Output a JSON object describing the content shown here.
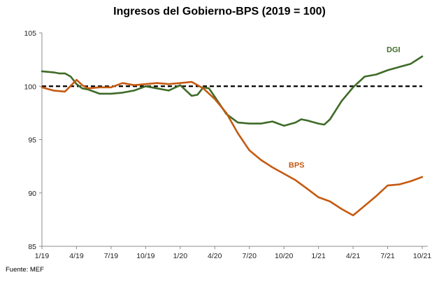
{
  "chart_data": {
    "type": "line",
    "title": "Ingresos del Gobierno-BPS (2019 = 100)",
    "source": "Fuente: MEF",
    "y_ticks": [
      "85",
      "90",
      "95",
      "100",
      "105"
    ],
    "y_range": [
      85,
      105
    ],
    "x_tick_labels": [
      "1/19",
      "4/19",
      "7/19",
      "10/19",
      "1/20",
      "4/20",
      "7/20",
      "10/20",
      "1/21",
      "4/21",
      "7/21",
      "10/21"
    ],
    "x_tick_index": [
      0,
      3,
      6,
      9,
      12,
      15,
      18,
      21,
      24,
      27,
      30,
      33
    ],
    "x_range": [
      0,
      33
    ],
    "reference_line": 100,
    "grid": false,
    "colors": {
      "DGI": "#3e6b27",
      "BPS": "#c55a11",
      "reference": "#000000"
    },
    "series": [
      {
        "name": "DGI",
        "x": [
          0,
          1,
          1.5,
          2,
          2.5,
          3,
          3.5,
          4,
          5,
          6,
          7,
          8,
          9,
          10,
          11,
          12,
          12.5,
          13,
          13.5,
          14,
          14.5,
          15,
          16,
          17,
          18,
          19,
          20,
          20.5,
          21,
          22,
          22.5,
          23,
          24,
          24.5,
          25,
          26,
          27,
          28,
          29,
          30,
          31,
          32,
          33
        ],
        "y": [
          101.4,
          101.3,
          101.2,
          101.2,
          100.9,
          100.2,
          99.8,
          99.7,
          99.3,
          99.3,
          99.4,
          99.6,
          100.0,
          99.8,
          99.6,
          100.1,
          99.6,
          99.1,
          99.2,
          99.9,
          99.8,
          99.0,
          97.4,
          96.6,
          96.5,
          96.5,
          96.7,
          96.5,
          96.3,
          96.6,
          96.9,
          96.8,
          96.5,
          96.4,
          96.9,
          98.6,
          99.9,
          100.9,
          101.1,
          101.5,
          101.8,
          102.1,
          102.8
        ]
      },
      {
        "name": "BPS",
        "x": [
          0,
          1,
          2,
          3,
          3.5,
          4,
          5,
          6,
          6.5,
          7,
          8,
          9,
          10,
          11,
          12,
          13,
          14,
          15,
          16,
          17,
          18,
          19,
          20,
          21,
          22,
          23,
          24,
          25,
          26,
          27,
          28,
          29,
          30,
          31,
          32,
          33
        ],
        "y": [
          99.9,
          99.6,
          99.5,
          100.6,
          100.1,
          99.8,
          99.9,
          99.9,
          100.1,
          100.3,
          100.1,
          100.2,
          100.3,
          100.2,
          100.3,
          100.4,
          99.8,
          98.8,
          97.5,
          95.6,
          94.0,
          93.1,
          92.4,
          91.8,
          91.2,
          90.4,
          89.6,
          89.2,
          88.5,
          87.9,
          88.8,
          89.7,
          90.7,
          90.8,
          91.1,
          91.5
        ]
      }
    ]
  }
}
